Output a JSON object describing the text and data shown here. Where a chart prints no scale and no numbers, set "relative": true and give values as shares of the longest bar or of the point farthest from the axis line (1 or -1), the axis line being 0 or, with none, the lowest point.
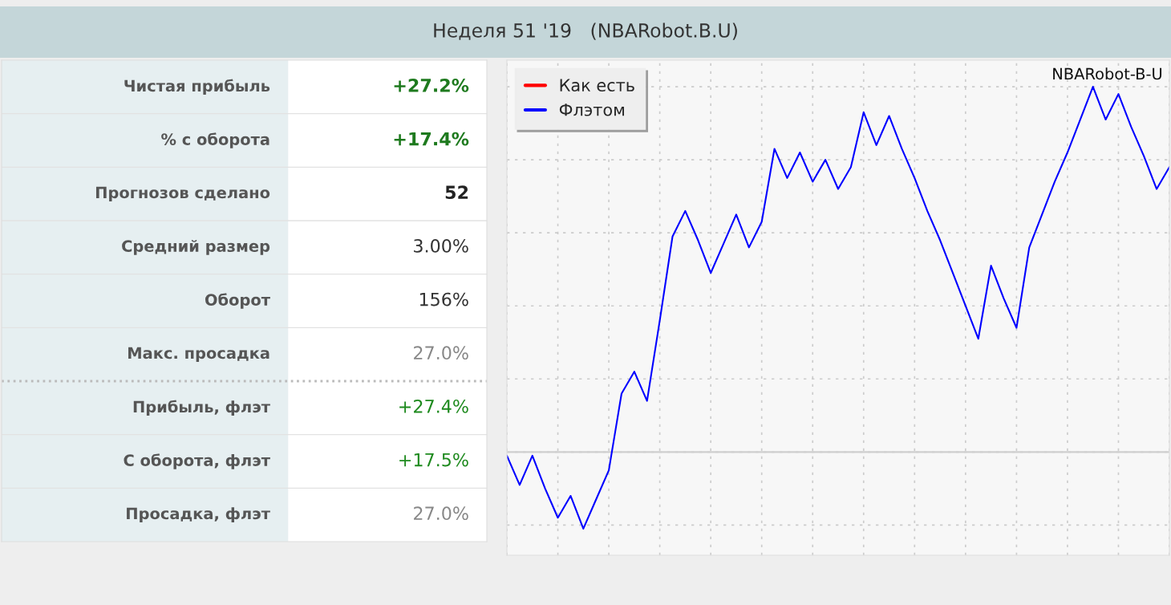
{
  "chart_data": [
    {
      "type": "other",
      "title": "Неделя 51 '19   (NBARobot.B.U)",
      "categories": [
        "Чистая прибыль",
        "% с оборота",
        "Прогнозов сделано",
        "Средний размер",
        "Оборот",
        "Макс. просадка",
        "Прибыль, флэт",
        "С оборота, флэт",
        "Просадка, флэт"
      ],
      "value_labels": [
        "+27.2%",
        "+17.4%",
        "52",
        "3.00%",
        "156%",
        "27.0%",
        "+27.4%",
        "+17.5%",
        "27.0%"
      ]
    },
    {
      "type": "line",
      "relative": true,
      "legend": "top left",
      "grid": true,
      "categories": [
        null,
        null,
        null,
        null,
        null,
        null,
        null,
        null,
        null,
        null,
        null,
        null,
        null,
        null,
        null,
        null,
        null,
        null,
        null,
        null,
        null,
        null,
        null,
        null,
        null,
        null,
        null,
        null,
        null,
        null,
        null,
        null,
        null,
        null,
        null,
        null,
        null,
        null,
        null,
        null,
        null,
        null,
        null,
        null,
        null,
        null,
        null,
        null,
        null,
        null,
        null,
        null,
        null
      ],
      "annotations": [
        "NBARobot-B-U"
      ],
      "series": [
        {
          "name": "Как есть",
          "color": "#ff0000",
          "values": [
            null,
            null,
            null,
            null,
            null,
            null,
            null,
            null,
            null,
            null,
            null,
            null,
            null,
            null,
            null,
            null,
            null,
            null,
            null,
            null,
            null,
            null,
            null,
            null,
            null,
            null,
            null,
            null,
            null,
            null,
            null,
            null,
            null,
            null,
            null,
            null,
            null,
            null,
            null,
            null,
            null,
            null,
            null,
            null,
            null,
            null,
            null,
            null,
            null,
            null,
            null,
            null,
            null
          ]
        },
        {
          "name": "Флэтом",
          "color": "#0000ff",
          "values": [
            -0.01,
            -0.09,
            -0.01,
            -0.1,
            -0.18,
            -0.12,
            -0.21,
            -0.13,
            -0.05,
            0.16,
            0.22,
            0.14,
            0.36,
            0.59,
            0.66,
            0.58,
            0.49,
            0.57,
            0.65,
            0.56,
            0.63,
            0.83,
            0.75,
            0.82,
            0.74,
            0.8,
            0.72,
            0.78,
            0.93,
            0.84,
            0.92,
            0.83,
            0.75,
            0.66,
            0.58,
            0.49,
            0.4,
            0.31,
            0.51,
            0.42,
            0.34,
            0.56,
            0.65,
            0.74,
            0.82,
            0.91,
            1,
            0.91,
            0.98,
            0.89,
            0.81,
            0.72,
            0.78
          ]
        }
      ]
    }
  ]
}
